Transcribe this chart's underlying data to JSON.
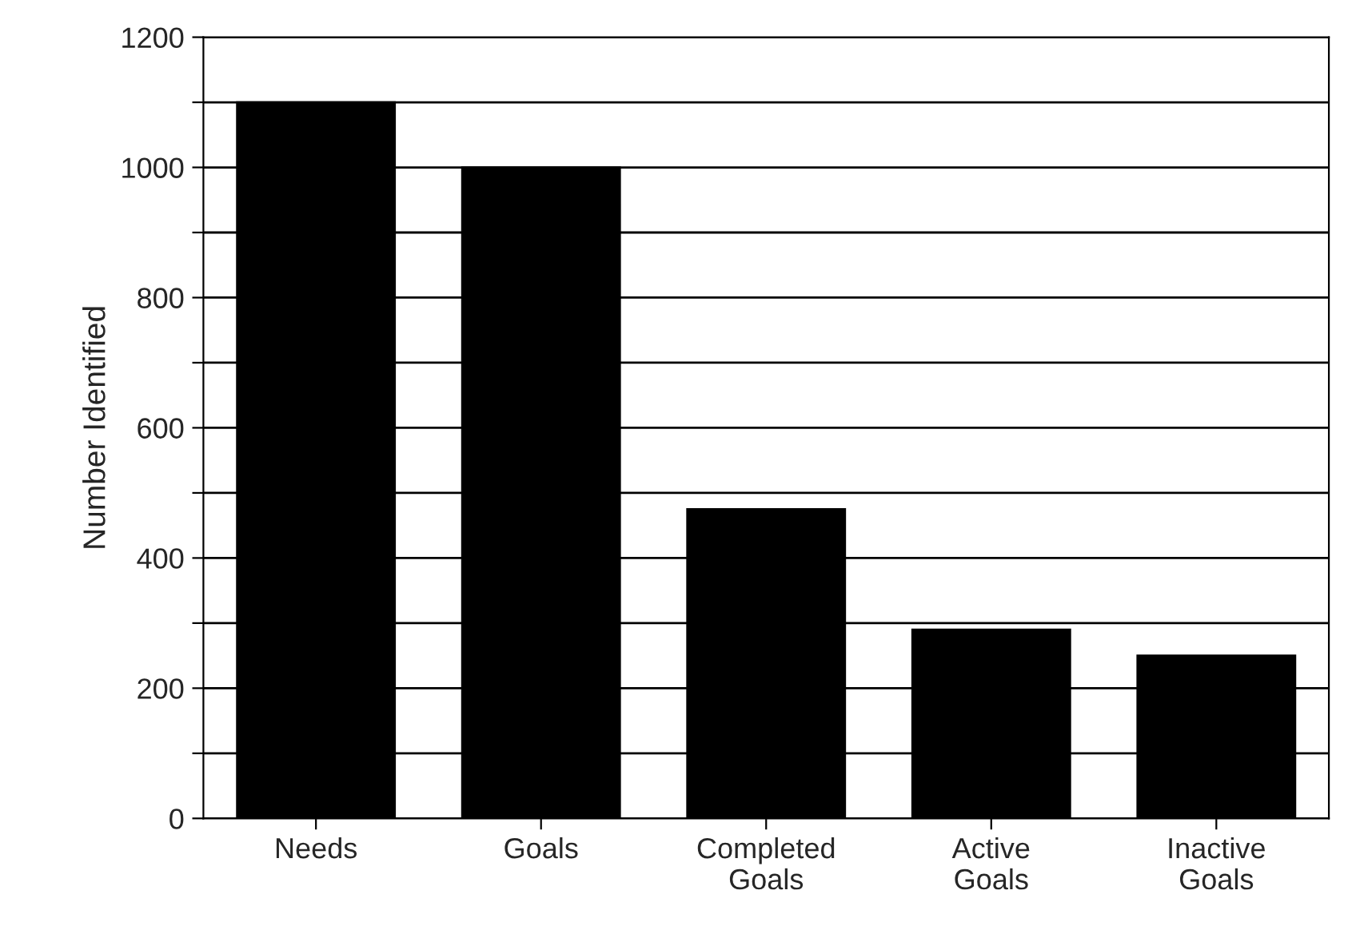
{
  "chart_data": {
    "type": "bar",
    "ylabel": "Number Identified",
    "categories": [
      "Needs",
      "Goals",
      "Completed\nGoals",
      "Active\nGoals",
      "Inactive\nGoals"
    ],
    "values": [
      1100,
      1000,
      475,
      290,
      250
    ],
    "color": "#000000",
    "ylim": [
      0,
      1200
    ],
    "yticks": [
      0,
      {
        "value": 100,
        "label": null
      },
      200,
      {
        "value": 300,
        "label": null
      },
      400,
      {
        "value": 500,
        "label": null
      },
      600,
      {
        "value": 700,
        "label": null
      },
      800,
      {
        "value": 900,
        "label": null
      },
      1000,
      {
        "value": 1100,
        "label": null
      },
      1200
    ],
    "grid": "y"
  }
}
